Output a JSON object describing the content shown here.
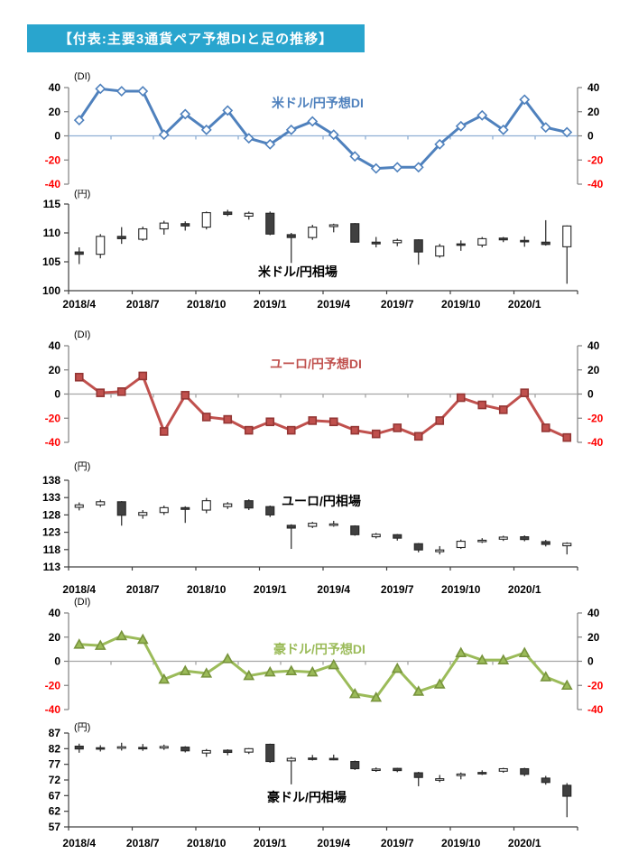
{
  "figure_title": "【付表:主要3通貨ペア予想DIと足の推移】",
  "title_bar_color": "#29A5CE",
  "x_tick_labels": [
    "2018/4",
    "2018/7",
    "2018/10",
    "2019/1",
    "2019/4",
    "2019/7",
    "2019/10",
    "2020/1"
  ],
  "chart_data": [
    {
      "type": "line",
      "name": "usdjpy-forecast-di",
      "title": "米ドル/円予想DI",
      "unit_label": "(DI)",
      "color": "#4F81BD",
      "marker": "diamond",
      "marker_fill": "#FFFFFF",
      "marker_stroke": "#4F81BD",
      "zero_line_color": "#8FAFD4",
      "ylim": [
        -40,
        40
      ],
      "yticks": [
        40,
        20,
        0,
        -20,
        -40
      ],
      "values": [
        13,
        39,
        37,
        37,
        1,
        18,
        5,
        21,
        -2,
        -7,
        5,
        12,
        1,
        -17,
        -27,
        -26,
        -26,
        -7,
        8,
        17,
        5,
        30,
        7,
        3
      ]
    },
    {
      "type": "candlestick",
      "name": "usdjpy-rate",
      "title": "米ドル/円相場",
      "unit_label": "(円)",
      "ylim": [
        100,
        115
      ],
      "yticks": [
        115,
        110,
        105,
        100
      ],
      "up_color": "#FFFFFF",
      "down_color": "#404040",
      "x_labels": [
        "2018/4",
        "2018/7",
        "2018/10",
        "2019/1",
        "2019/4",
        "2019/7",
        "2019/10",
        "2020/1"
      ],
      "candles": [
        [
          106.7,
          107.5,
          104.6,
          106.3
        ],
        [
          106.3,
          109.8,
          105.6,
          109.4
        ],
        [
          109.4,
          111.0,
          108.1,
          109.0
        ],
        [
          108.9,
          111.1,
          108.6,
          110.7
        ],
        [
          110.7,
          112.1,
          109.7,
          111.7
        ],
        [
          111.6,
          112.0,
          110.4,
          111.2
        ],
        [
          111.0,
          113.7,
          110.6,
          113.5
        ],
        [
          113.6,
          114.0,
          112.9,
          113.2
        ],
        [
          112.9,
          113.7,
          112.3,
          113.4
        ],
        [
          113.4,
          113.7,
          109.6,
          109.8
        ],
        [
          109.7,
          110.0,
          104.8,
          109.2
        ],
        [
          109.2,
          111.4,
          108.8,
          111.0
        ],
        [
          111.1,
          111.6,
          110.1,
          111.4
        ],
        [
          111.6,
          111.7,
          108.3,
          108.4
        ],
        [
          108.4,
          109.3,
          107.5,
          108.1
        ],
        [
          108.3,
          109.0,
          107.7,
          108.7
        ],
        [
          108.8,
          108.9,
          104.5,
          106.7
        ],
        [
          106.0,
          108.1,
          105.7,
          107.7
        ],
        [
          108.1,
          108.7,
          106.9,
          107.9
        ],
        [
          107.9,
          109.3,
          107.5,
          109.0
        ],
        [
          109.1,
          109.3,
          108.4,
          108.8
        ],
        [
          108.7,
          109.4,
          107.6,
          108.5
        ],
        [
          108.4,
          112.2,
          107.8,
          108.0
        ],
        [
          107.6,
          111.3,
          101.2,
          111.2
        ]
      ]
    },
    {
      "type": "line",
      "name": "eurjpy-forecast-di",
      "title": "ユーロ/円予想DI",
      "unit_label": "(DI)",
      "color": "#C0504D",
      "marker": "square",
      "marker_fill": "#C0504D",
      "marker_stroke": "#943634",
      "zero_line_color": "#A6A6A6",
      "ylim": [
        -40,
        40
      ],
      "yticks": [
        40,
        20,
        0,
        -20,
        -40
      ],
      "values": [
        14,
        1,
        2,
        15,
        -31,
        -1,
        -19,
        -21,
        -30,
        -23,
        -30,
        -22,
        -23,
        -30,
        -33,
        -28,
        -35,
        -22,
        -3,
        -9,
        -13,
        1,
        -28,
        -36
      ]
    },
    {
      "type": "candlestick",
      "name": "eurjpy-rate",
      "title": "ユーロ/円相場",
      "unit_label": "(円)",
      "ylim": [
        113,
        138
      ],
      "yticks": [
        138,
        133,
        128,
        123,
        118,
        113
      ],
      "up_color": "#FFFFFF",
      "down_color": "#404040",
      "x_labels": [
        "2018/4",
        "2018/7",
        "2018/10",
        "2019/1",
        "2019/4",
        "2019/7",
        "2019/10",
        "2020/1"
      ],
      "candles": [
        [
          130.2,
          131.6,
          129.3,
          130.9
        ],
        [
          130.9,
          132.4,
          130.3,
          131.8
        ],
        [
          131.8,
          132.0,
          124.9,
          127.9
        ],
        [
          127.9,
          129.4,
          126.9,
          128.7
        ],
        [
          128.7,
          130.7,
          128.0,
          130.1
        ],
        [
          130.1,
          130.5,
          125.7,
          129.6
        ],
        [
          129.4,
          132.9,
          128.5,
          132.1
        ],
        [
          130.4,
          131.7,
          129.7,
          131.2
        ],
        [
          132.1,
          132.5,
          129.4,
          130.0
        ],
        [
          130.4,
          130.7,
          127.4,
          128.0
        ],
        [
          125.0,
          125.3,
          118.2,
          124.2
        ],
        [
          124.7,
          126.0,
          124.2,
          125.6
        ],
        [
          125.1,
          126.3,
          124.6,
          125.4
        ],
        [
          124.8,
          125.0,
          122.0,
          122.3
        ],
        [
          121.7,
          122.8,
          121.2,
          122.4
        ],
        [
          122.3,
          122.5,
          120.6,
          121.3
        ],
        [
          119.7,
          119.9,
          117.2,
          117.9
        ],
        [
          117.4,
          119.0,
          116.6,
          117.9
        ],
        [
          118.6,
          120.9,
          118.2,
          120.4
        ],
        [
          120.5,
          121.3,
          119.9,
          120.7
        ],
        [
          121.0,
          122.0,
          120.5,
          121.6
        ],
        [
          121.7,
          122.1,
          120.4,
          120.9
        ],
        [
          120.3,
          120.8,
          118.9,
          119.5
        ],
        [
          119.1,
          120.1,
          116.6,
          119.8
        ]
      ]
    },
    {
      "type": "line",
      "name": "audjpy-forecast-di",
      "title": "豪ドル/円予想DI",
      "unit_label": "(DI)",
      "color": "#9BBB59",
      "marker": "triangle",
      "marker_fill": "#9BBB59",
      "marker_stroke": "#77933C",
      "zero_line_color": "#A6A6A6",
      "ylim": [
        -40,
        40
      ],
      "yticks": [
        40,
        20,
        0,
        -20,
        -40
      ],
      "values": [
        14,
        13,
        21,
        18,
        -15,
        -8,
        -10,
        2,
        -12,
        -9,
        -8,
        -9,
        -3,
        -27,
        -30,
        -6,
        -25,
        -19,
        7,
        1,
        1,
        7,
        -13,
        -20
      ]
    },
    {
      "type": "candlestick",
      "name": "audjpy-rate",
      "title": "豪ドル/円相場",
      "unit_label": "(円)",
      "ylim": [
        57,
        87
      ],
      "yticks": [
        87,
        82,
        77,
        72,
        67,
        62,
        57
      ],
      "up_color": "#FFFFFF",
      "down_color": "#404040",
      "x_labels": [
        "2018/4",
        "2018/7",
        "2018/10",
        "2019/1",
        "2019/4",
        "2019/7",
        "2019/10",
        "2020/1"
      ],
      "candles": [
        [
          82.8,
          83.6,
          80.7,
          81.9
        ],
        [
          82.3,
          83.1,
          81.1,
          81.9
        ],
        [
          82.5,
          83.9,
          81.4,
          82.6
        ],
        [
          82.4,
          83.5,
          81.3,
          82.2
        ],
        [
          82.2,
          83.3,
          81.6,
          82.7
        ],
        [
          82.5,
          82.8,
          80.8,
          81.3
        ],
        [
          80.6,
          81.9,
          79.4,
          81.4
        ],
        [
          81.5,
          81.8,
          79.9,
          80.8
        ],
        [
          80.9,
          82.2,
          80.3,
          82.0
        ],
        [
          83.4,
          83.6,
          77.5,
          77.9
        ],
        [
          78.1,
          79.4,
          70.6,
          78.9
        ],
        [
          79.0,
          80.0,
          78.2,
          78.8
        ],
        [
          78.9,
          80.1,
          78.3,
          78.7
        ],
        [
          77.9,
          78.2,
          75.2,
          75.6
        ],
        [
          75.3,
          76.0,
          74.6,
          75.5
        ],
        [
          75.7,
          75.9,
          74.5,
          75.0
        ],
        [
          74.3,
          74.6,
          70.0,
          72.8
        ],
        [
          71.9,
          73.6,
          71.3,
          72.4
        ],
        [
          73.4,
          74.4,
          72.2,
          73.9
        ],
        [
          74.4,
          75.1,
          73.6,
          74.2
        ],
        [
          74.8,
          75.9,
          74.3,
          75.6
        ],
        [
          75.6,
          75.9,
          73.2,
          73.8
        ],
        [
          72.6,
          73.3,
          70.5,
          71.2
        ],
        [
          70.3,
          71.0,
          60.1,
          66.8
        ]
      ]
    }
  ]
}
